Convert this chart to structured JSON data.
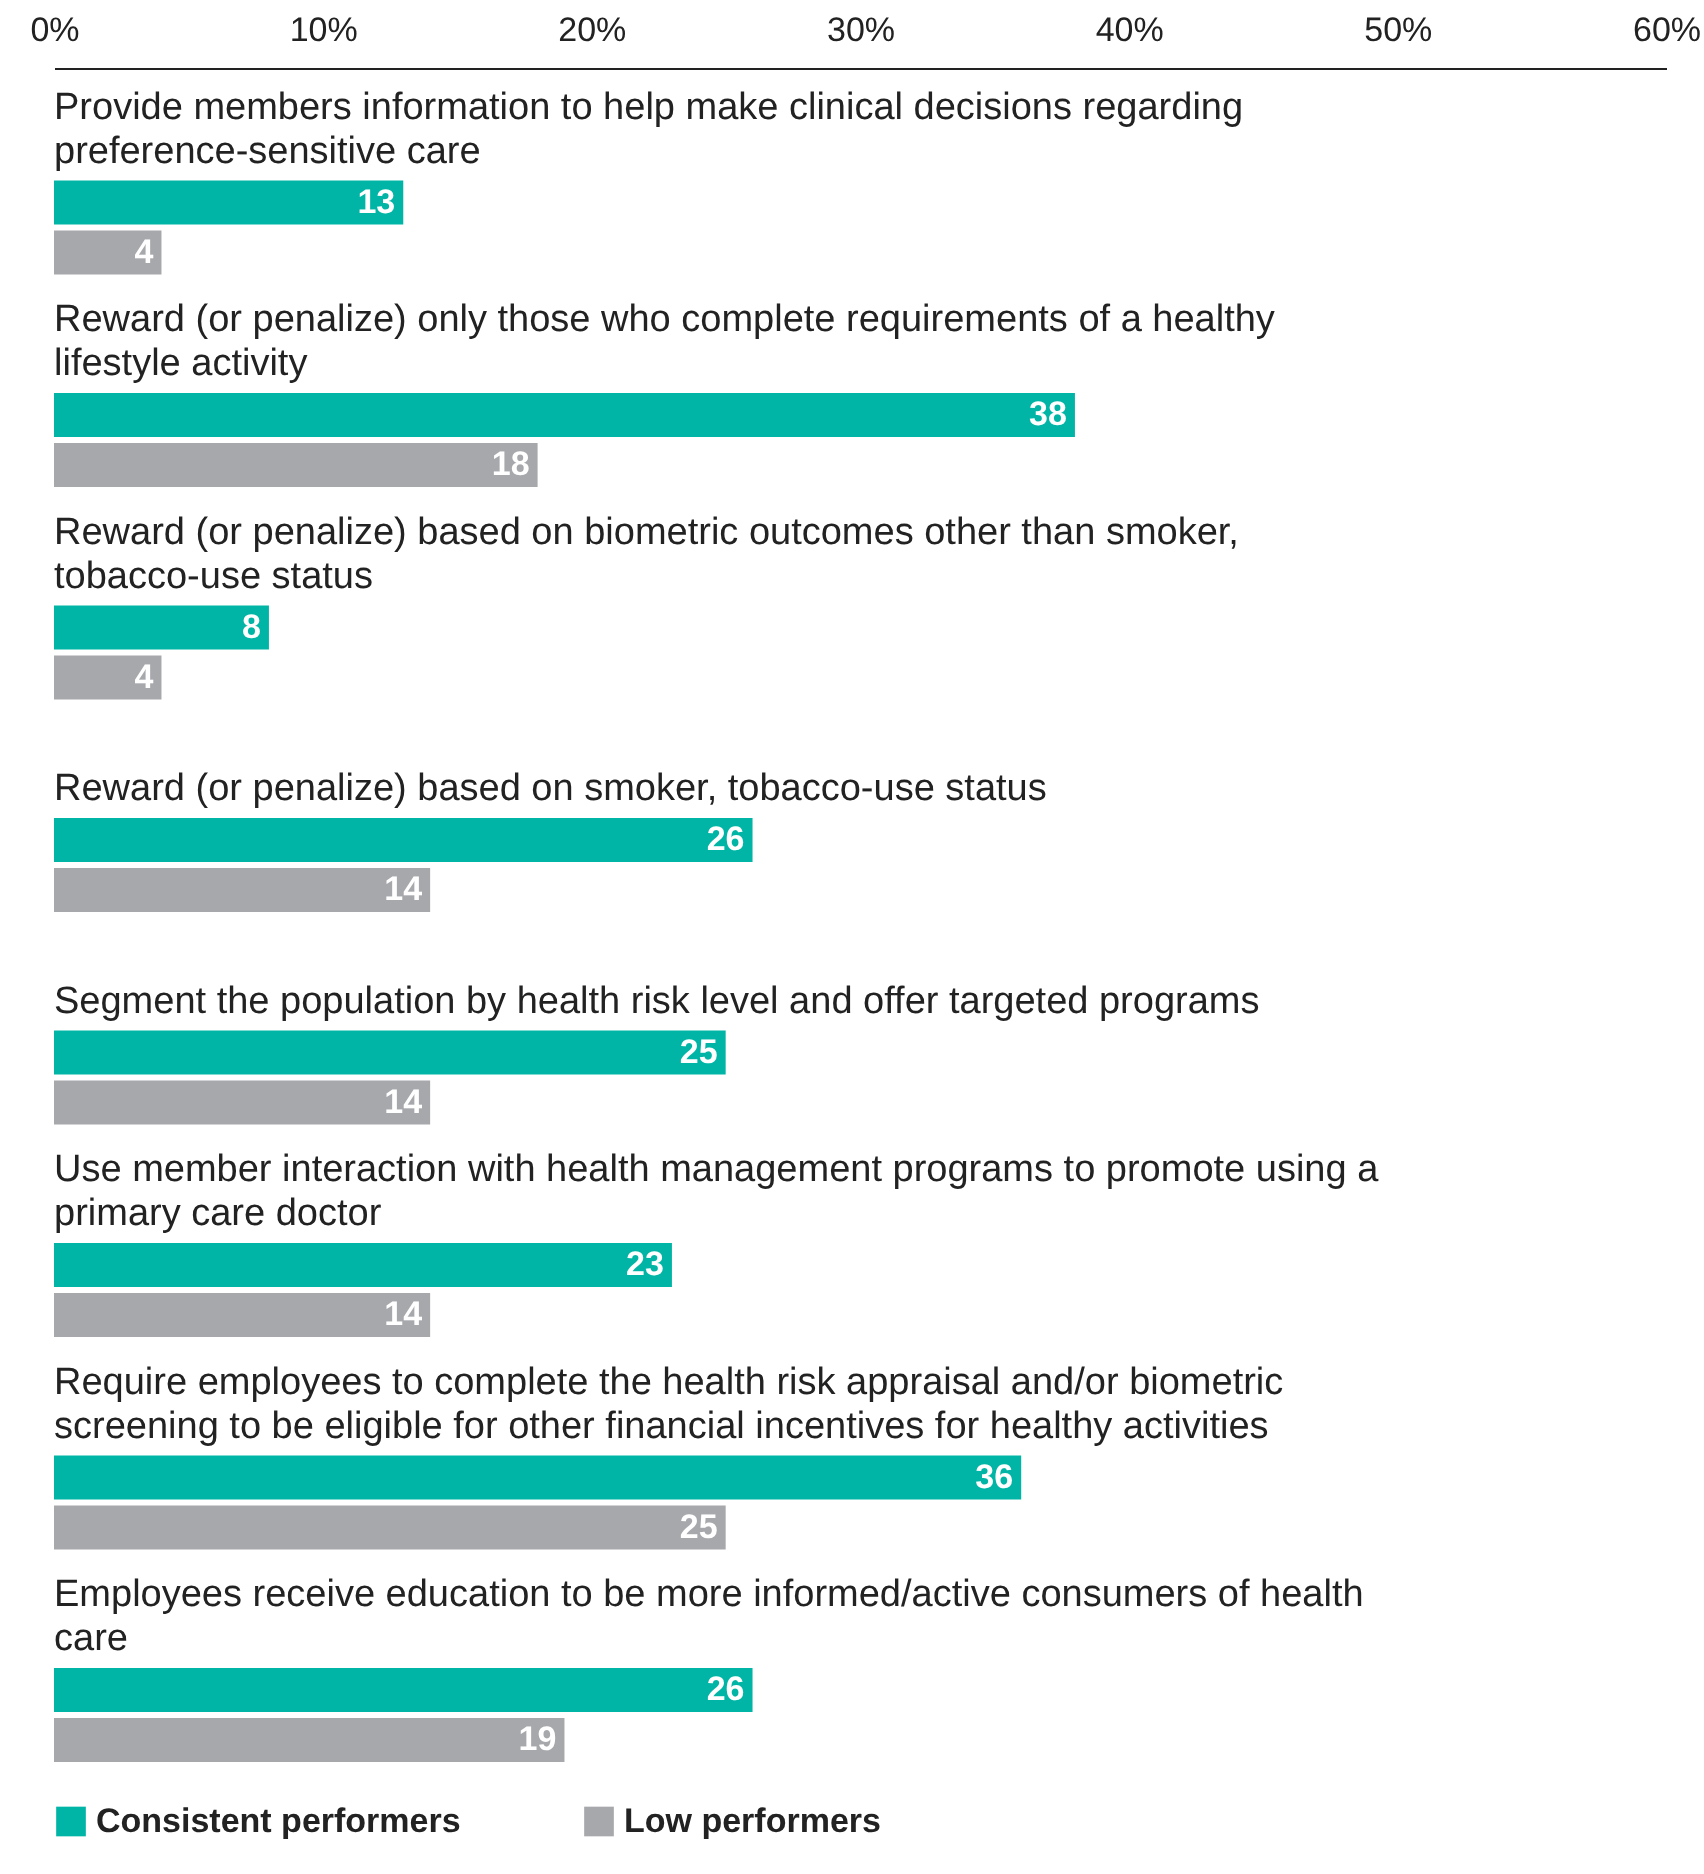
{
  "chart_data": {
    "type": "bar",
    "orientation": "horizontal",
    "categories": [
      "Provide members information to help make clinical decisions regarding preference-sensitive care",
      "Reward (or penalize) only those who complete requirements of a healthy lifestyle activity",
      "Reward (or penalize) based on biometric outcomes other than smoker, tobacco-use status",
      "Reward (or penalize) based on smoker, tobacco-use status",
      "Segment the population by health risk level and offer targeted programs",
      "Use member interaction with health management programs to promote using a primary care doctor",
      "Require employees to complete the health risk appraisal and/or biometric screening to be eligible for other financial incentives for healthy activities",
      "Employees receive education to be more informed/active consumers of health care"
    ],
    "series": [
      {
        "name": "Consistent performers",
        "color": "#00b5a5",
        "values": [
          13,
          38,
          8,
          26,
          25,
          23,
          36,
          26
        ]
      },
      {
        "name": "Low performers",
        "color": "#a7a8ac",
        "values": [
          4,
          18,
          4,
          14,
          14,
          14,
          25,
          19
        ]
      }
    ],
    "xlim": [
      0,
      60
    ],
    "xticks": [
      {
        "value": 0,
        "label": "0%"
      },
      {
        "value": 10,
        "label": "10%"
      },
      {
        "value": 20,
        "label": "20%"
      },
      {
        "value": 30,
        "label": "30%"
      },
      {
        "value": 40,
        "label": "40%"
      },
      {
        "value": 50,
        "label": "50%"
      },
      {
        "value": 60,
        "label": "60%"
      }
    ],
    "data_labels": true,
    "legend": "bottom",
    "grid": false
  }
}
